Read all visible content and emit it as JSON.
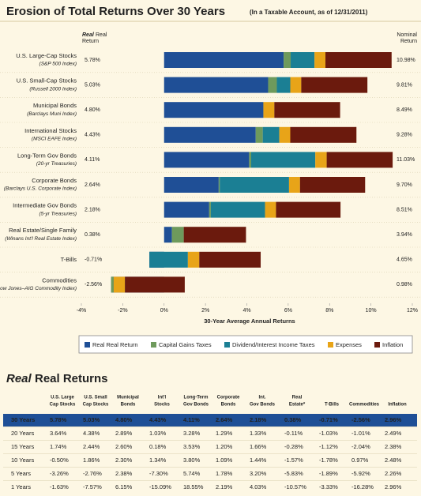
{
  "chart_data": {
    "type": "stacked-barh",
    "title": "Erosion of Total Returns Over 30 Years",
    "subtitle": "(In a Taxable Account, as of 12/31/2011)",
    "real_header": [
      "Real",
      "Real",
      "Return"
    ],
    "nominal_header": [
      "Nominal",
      "Return"
    ],
    "categories": [
      "U.S. Large-Cap Stocks",
      "U.S. Small-Cap Stocks",
      "Municipal Bonds",
      "International Stocks",
      "Long-Term Gov Bonds",
      "Corporate Bonds",
      "Intermediate Gov Bonds",
      "Real Estate/Single Family",
      "T-Bills",
      "Commodities"
    ],
    "category_subtitles": [
      "(S&P 500 Index)",
      "(Russell 2000 Index)",
      "(Barclays Muni Index)",
      "(MSCI EAFE Index)",
      "(20-yr Treasuries)",
      "(Barclays U.S. Corporate Index)",
      "(5-yr Treasuries)",
      "(Winans Int'l Real Estate Index)",
      null,
      "(Dow Jones–AIG Commodity Index)"
    ],
    "series": [
      {
        "name": "Real Real Return",
        "color": "#1f4f96",
        "values": [
          5.78,
          5.03,
          4.8,
          4.43,
          4.11,
          2.64,
          2.18,
          0.38,
          -0.71,
          -2.56
        ],
        "value_labels": [
          "5.78%",
          "5.03%",
          "4.80%",
          "4.43%",
          "4.11%",
          "2.64%",
          "2.18%",
          "0.38%",
          "-0.71%",
          "-2.56%"
        ]
      },
      {
        "name": "Capital Gains Taxes",
        "color": "#6e9a5c",
        "values": [
          0.34,
          0.42,
          0,
          0.34,
          0.1,
          0.05,
          0.08,
          0.57,
          0,
          0.12
        ]
      },
      {
        "name": "Dividend/Interest Income Taxes",
        "color": "#1b7f94",
        "values": [
          1.15,
          0.65,
          0,
          0.8,
          3.1,
          3.35,
          2.62,
          0,
          1.86,
          0
        ]
      },
      {
        "name": "Expenses",
        "color": "#e8a418",
        "values": [
          0.53,
          0.53,
          0.53,
          0.53,
          0.55,
          0.53,
          0.53,
          0,
          0.55,
          0.55
        ]
      },
      {
        "name": "Inflation",
        "color": "#6b1a0d",
        "values": [
          3.18,
          3.18,
          3.16,
          3.18,
          3.17,
          3.13,
          3.1,
          2.99,
          2.95,
          2.87
        ]
      }
    ],
    "nominal_returns": {
      "values": [
        10.98,
        9.81,
        8.49,
        9.28,
        11.03,
        9.7,
        8.51,
        3.94,
        4.65,
        0.98
      ],
      "value_labels": [
        "10.98%",
        "9.81%",
        "8.49%",
        "9.28%",
        "11.03%",
        "9.70%",
        "8.51%",
        "3.94%",
        "4.65%",
        "0.98%"
      ]
    },
    "xlim": [
      -4,
      12
    ],
    "xticks": [
      {
        "value": -4,
        "label": "-4%"
      },
      {
        "value": -2,
        "label": "-2%"
      },
      {
        "value": 0,
        "label": "0%"
      },
      {
        "value": 2,
        "label": "2%"
      },
      {
        "value": 4,
        "label": "4%"
      },
      {
        "value": 6,
        "label": "6%"
      },
      {
        "value": 8,
        "label": "8%"
      },
      {
        "value": 10,
        "label": "10%"
      },
      {
        "value": 12,
        "label": "12%"
      }
    ],
    "xlabel": "30-Year Average Annual Returns"
  },
  "table": {
    "title": [
      "Real",
      "Real Returns"
    ],
    "columns": [
      [
        "U.S. Large",
        "Cap Stocks"
      ],
      [
        "U.S. Small",
        "Cap Stocks"
      ],
      [
        "Municipal",
        "Bonds"
      ],
      [
        "Int'l",
        "Stocks"
      ],
      [
        "Long-Term",
        "Gov Bonds"
      ],
      [
        "Corporate",
        "Bonds"
      ],
      [
        "Int.",
        "Gov Bonds"
      ],
      [
        "Real",
        "Estate*"
      ],
      [
        "T-Bills"
      ],
      [
        "Commodities"
      ],
      [
        "Inflation"
      ]
    ],
    "rows": [
      {
        "label": "30 Years",
        "values": [
          "5.78%",
          "5.03%",
          "4.80%",
          "4.43%",
          "4.11%",
          "2.64%",
          "2.18%",
          "0.38%",
          "-0.71%",
          "-2.56%",
          "2.96%"
        ]
      },
      {
        "label": "20 Years",
        "values": [
          "3.64%",
          "4.38%",
          "2.89%",
          "1.03%",
          "3.28%",
          "1.29%",
          "1.33%",
          "-0.11%",
          "-1.03%",
          "-1.01%",
          "2.49%"
        ]
      },
      {
        "label": "15 Years",
        "values": [
          "1.74%",
          "2.44%",
          "2.60%",
          "0.18%",
          "3.53%",
          "1.20%",
          "1.66%",
          "-0.28%",
          "-1.12%",
          "-2.04%",
          "2.38%"
        ]
      },
      {
        "label": "10 Years",
        "values": [
          "-0.50%",
          "1.86%",
          "2.30%",
          "1.34%",
          "3.80%",
          "1.09%",
          "1.44%",
          "-1.57%",
          "-1.78%",
          "0.97%",
          "2.48%"
        ]
      },
      {
        "label": "5 Years",
        "values": [
          "-3.26%",
          "-2.76%",
          "2.38%",
          "-7.30%",
          "5.74%",
          "1.78%",
          "3.20%",
          "-5.83%",
          "-1.89%",
          "-5.92%",
          "2.26%"
        ]
      },
      {
        "label": "1 Years",
        "values": [
          "-1.63%",
          "-7.57%",
          "6.15%",
          "-15.09%",
          "18.55%",
          "2.19%",
          "4.03%",
          "-10.57%",
          "-3.33%",
          "-16.28%",
          "2.96%"
        ]
      }
    ]
  }
}
